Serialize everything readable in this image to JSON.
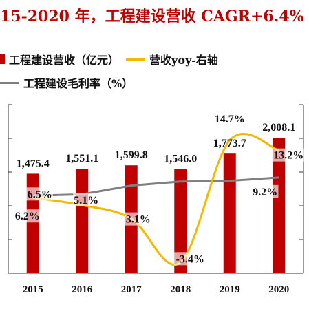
{
  "title": "15-2020 年，工程建设营收 CAGR+6.4%",
  "legend": {
    "revenue": "工程建设营收（亿元）",
    "yoy": "营收yoy-右轴",
    "margin": "工程建设毛利率（%）"
  },
  "colors": {
    "bar": "#c00000",
    "yoy": "#f5b800",
    "margin": "#808080"
  },
  "chart_data": {
    "type": "bar",
    "categories": [
      "2015",
      "2016",
      "2017",
      "2018",
      "2019",
      "2020"
    ],
    "series": [
      {
        "name": "工程建设营收（亿元）",
        "type": "bar",
        "axis": "left",
        "values": [
          1475.4,
          1551.1,
          1599.8,
          1546.0,
          1773.7,
          2008.1
        ],
        "labels": [
          "1,475.4",
          "1,551.1",
          "1,599.8",
          "1,546.0",
          "1,773.7",
          "2,008.1"
        ]
      },
      {
        "name": "营收yoy-右轴",
        "type": "line",
        "axis": "right",
        "values": [
          6.2,
          5.1,
          3.1,
          -3.4,
          14.7,
          13.2
        ],
        "labels": [
          "6.2%",
          "5.1%",
          "3.1%",
          "-3.4%",
          "14.7%",
          "13.2%"
        ]
      },
      {
        "name": "工程建设毛利率（%）",
        "type": "line",
        "axis": "right",
        "values": [
          6.5,
          6.7,
          8.0,
          8.6,
          8.7,
          9.2
        ],
        "labels": [
          "6.5%",
          "",
          "",
          "",
          "",
          "9.2%"
        ]
      }
    ],
    "ylim_left": [
      0,
      2500
    ],
    "ylim_right": [
      -5,
      20
    ],
    "grid": false
  }
}
